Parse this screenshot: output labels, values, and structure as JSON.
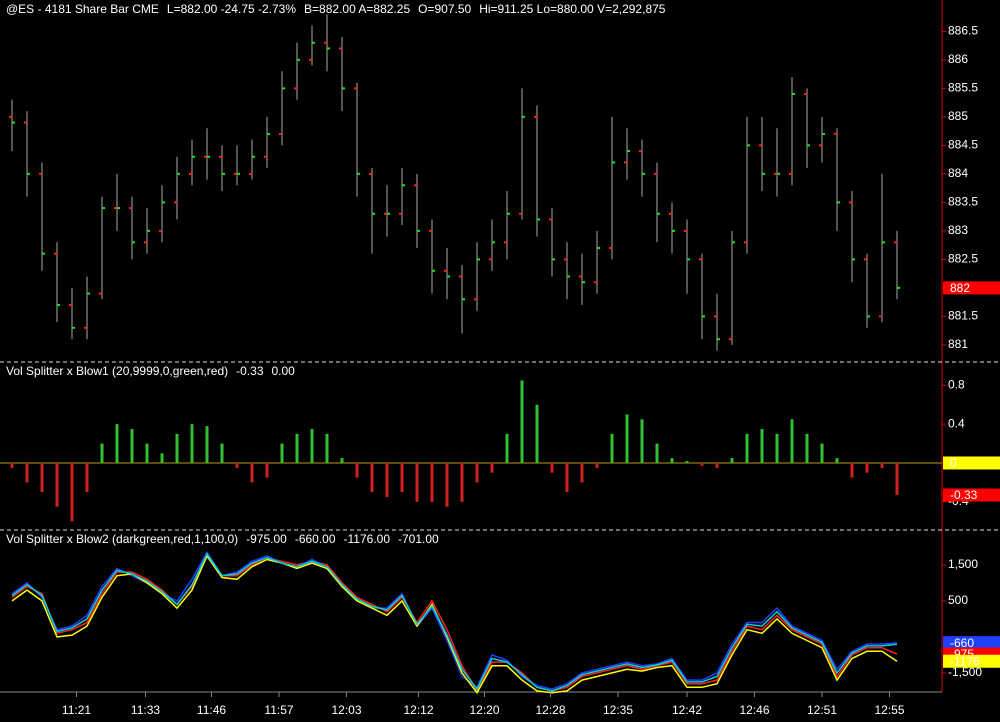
{
  "chart_data": [
    {
      "type": "ohlc",
      "header": [
        {
          "text": "@ES - 4181 Share Bar  CME",
          "color": "#ffffff"
        },
        {
          "text": "L=882.00  -24.75  -2.73%",
          "color": "#ff2020"
        },
        {
          "text": "B=882.00  A=882.25",
          "color": "#ffffff"
        },
        {
          "text": "O=907.50",
          "color": "#ff2020"
        },
        {
          "text": "Hi=911.25  Lo=880.00  V=2,292,875",
          "color": "#ffffff"
        }
      ],
      "open": [
        885,
        884.9,
        884,
        882.6,
        881.7,
        881.3,
        881.9,
        883.4,
        883.4,
        882.8,
        883,
        883.5,
        884,
        884.3,
        884.3,
        884,
        884,
        884.3,
        884.7,
        885.5,
        886,
        886.3,
        886.2,
        885.5,
        884,
        883.3,
        883.3,
        883.8,
        883,
        882.3,
        882.2,
        881.8,
        882.5,
        882.8,
        883.3,
        885,
        883.2,
        882.5,
        882.2,
        882.1,
        882.7,
        884.2,
        884.4,
        884,
        883.3,
        883,
        882.5,
        881.5,
        881.1,
        882.8,
        884.5,
        884,
        884,
        885.4,
        884.5,
        884.7,
        883.5,
        882.5,
        881.5,
        882.8
      ],
      "high": [
        885.3,
        885.1,
        884.2,
        882.8,
        882,
        882.2,
        883.6,
        884,
        883.6,
        883.4,
        883.8,
        884.3,
        884.6,
        884.8,
        884.5,
        884.5,
        884.6,
        885,
        885.8,
        886.3,
        886.6,
        886.8,
        886.4,
        885.6,
        884.1,
        883.8,
        884.1,
        884,
        883.2,
        882.7,
        882.4,
        882.8,
        883.2,
        883.7,
        885.5,
        885.2,
        883.4,
        882.8,
        882.6,
        883,
        885,
        884.8,
        884.6,
        884.2,
        883.5,
        883.2,
        882.6,
        881.9,
        883,
        885,
        885,
        884.8,
        885.7,
        885.5,
        885,
        884.8,
        883.7,
        882.6,
        884,
        883
      ],
      "low": [
        884.4,
        883.6,
        882.3,
        881.4,
        881.1,
        881.1,
        881.8,
        883,
        882.5,
        882.6,
        882.8,
        883.2,
        883.8,
        883.9,
        883.7,
        883.8,
        883.9,
        884.1,
        884.5,
        885.3,
        885.9,
        885.8,
        885.1,
        883.6,
        882.6,
        882.9,
        883.1,
        882.7,
        881.9,
        881.8,
        881.2,
        881.6,
        882.3,
        882.5,
        883.2,
        882.9,
        882.2,
        881.8,
        881.7,
        881.9,
        882.5,
        883.9,
        883.6,
        882.8,
        882.6,
        881.9,
        881.1,
        880.9,
        881,
        882.6,
        883.7,
        883.6,
        883.8,
        884.1,
        884.2,
        883,
        882.1,
        881.3,
        881.4,
        881.8
      ],
      "close": [
        884.9,
        884,
        882.6,
        881.7,
        881.3,
        881.9,
        883.4,
        883.4,
        882.8,
        883,
        883.5,
        884,
        884.3,
        884.3,
        884,
        884,
        884.3,
        884.7,
        885.5,
        886,
        886.3,
        886.2,
        885.5,
        884,
        883.3,
        883.3,
        883.8,
        883,
        882.3,
        882.2,
        881.8,
        882.5,
        882.8,
        883.3,
        885,
        883.2,
        882.5,
        882.2,
        882.1,
        882.7,
        884.2,
        884.4,
        884,
        883.3,
        883,
        882.5,
        881.5,
        881.1,
        882.8,
        884.5,
        884,
        884,
        885.4,
        884.5,
        884.7,
        883.5,
        882.5,
        881.5,
        882.8,
        882
      ],
      "colors": {
        "bar": "#a8a8a8",
        "open": "#ff2020",
        "close": "#20e020"
      },
      "ylim": [
        880.7,
        887.05
      ],
      "yticks": [
        881,
        881.5,
        882,
        882.5,
        883,
        883.5,
        884,
        884.5,
        885,
        885.5,
        886,
        886.5
      ],
      "markers": [
        {
          "value": 882,
          "color": "#ff0000",
          "text_color": "#ffffff"
        }
      ]
    },
    {
      "type": "bar",
      "header": [
        {
          "text": "Vol Splitter x Blow1 (20,9999,0,green,red)",
          "color": "#ffffff"
        },
        {
          "text": "-0.33",
          "color": "#ff2020"
        },
        {
          "text": "0.00",
          "color": "#ffff00"
        }
      ],
      "values": [
        -0.05,
        -0.2,
        -0.3,
        -0.45,
        -0.6,
        -0.3,
        0.2,
        0.4,
        0.35,
        0.2,
        0.1,
        0.3,
        0.4,
        0.38,
        0.2,
        -0.05,
        -0.2,
        -0.15,
        0.2,
        0.3,
        0.35,
        0.3,
        0.05,
        -0.15,
        -0.3,
        -0.35,
        -0.3,
        -0.4,
        -0.4,
        -0.45,
        -0.4,
        -0.2,
        -0.1,
        0.3,
        0.85,
        0.6,
        -0.1,
        -0.3,
        -0.2,
        -0.05,
        0.3,
        0.5,
        0.45,
        0.2,
        0.05,
        0.02,
        -0.03,
        -0.05,
        0.05,
        0.3,
        0.35,
        0.3,
        0.45,
        0.3,
        0.2,
        0.05,
        -0.15,
        -0.1,
        -0.05,
        -0.33
      ],
      "colors": {
        "positive": "#30c030",
        "negative": "#d02020",
        "zero_line": "#b0a000"
      },
      "ylim": [
        -0.69,
        1.04
      ],
      "yticks": [
        -0.4,
        0.4,
        0.8
      ],
      "markers": [
        {
          "value": 0,
          "color": "#ffff00",
          "text_color": "#000000"
        },
        {
          "value": -0.33,
          "color": "#ff0000",
          "text_color": "#000000"
        }
      ]
    },
    {
      "type": "line",
      "header": [
        {
          "text": "Vol Splitter x Blow2 (darkgreen,red,1,100,0)",
          "color": "#ffffff"
        },
        {
          "text": "-975.00",
          "color": "#ff2020"
        },
        {
          "text": "-660.00",
          "color": "#2040ff"
        },
        {
          "text": "-1176.00",
          "color": "#ffff00"
        },
        {
          "text": "-701.00",
          "color": "#00d0d0"
        }
      ],
      "series": [
        {
          "color": "#ff2020",
          "values": [
            600,
            900,
            700,
            -400,
            -300,
            -100,
            700,
            1300,
            1300,
            1100,
            800,
            400,
            900,
            1800,
            1200,
            1200,
            1500,
            1700,
            1600,
            1500,
            1600,
            1500,
            1000,
            600,
            400,
            200,
            600,
            -100,
            500,
            -300,
            -1300,
            -2000,
            -1200,
            -1200,
            -1500,
            -1900,
            -2000,
            -1900,
            -1600,
            -1500,
            -1400,
            -1300,
            -1400,
            -1300,
            -1200,
            -1800,
            -1800,
            -1700,
            -900,
            -200,
            -300,
            100,
            -300,
            -500,
            -700,
            -1600,
            -1000,
            -800,
            -800,
            -975
          ]
        },
        {
          "color": "#2040ff",
          "values": [
            700,
            1000,
            600,
            -300,
            -200,
            100,
            900,
            1400,
            1200,
            1000,
            700,
            500,
            1100,
            1850,
            1200,
            1300,
            1600,
            1750,
            1550,
            1450,
            1650,
            1450,
            900,
            500,
            300,
            300,
            700,
            -200,
            300,
            -600,
            -1600,
            -1900,
            -1000,
            -1150,
            -1600,
            -1850,
            -1950,
            -1800,
            -1500,
            -1400,
            -1300,
            -1200,
            -1300,
            -1250,
            -1100,
            -1700,
            -1700,
            -1500,
            -700,
            -100,
            -100,
            300,
            -200,
            -400,
            -600,
            -1400,
            -900,
            -700,
            -700,
            -660
          ]
        },
        {
          "color": "#ffff00",
          "values": [
            500,
            800,
            500,
            -500,
            -450,
            -200,
            600,
            1200,
            1250,
            1000,
            700,
            300,
            800,
            1750,
            1150,
            1100,
            1450,
            1650,
            1550,
            1400,
            1550,
            1400,
            900,
            500,
            300,
            100,
            500,
            -200,
            400,
            -500,
            -1500,
            -2050,
            -1300,
            -1300,
            -1700,
            -2000,
            -2050,
            -2000,
            -1700,
            -1600,
            -1500,
            -1400,
            -1450,
            -1350,
            -1300,
            -1900,
            -1900,
            -1800,
            -1000,
            -300,
            -400,
            0,
            -400,
            -600,
            -800,
            -1700,
            -1100,
            -900,
            -900,
            -1176
          ]
        },
        {
          "color": "#00d0d0",
          "values": [
            650,
            950,
            650,
            -350,
            -250,
            0,
            800,
            1350,
            1250,
            1050,
            750,
            400,
            950,
            1800,
            1200,
            1250,
            1550,
            1700,
            1550,
            1450,
            1600,
            1450,
            950,
            550,
            350,
            250,
            650,
            -150,
            350,
            -450,
            -1400,
            -1950,
            -1100,
            -1200,
            -1550,
            -1900,
            -2000,
            -1850,
            -1550,
            -1450,
            -1350,
            -1250,
            -1350,
            -1280,
            -1150,
            -1750,
            -1750,
            -1600,
            -800,
            -150,
            -200,
            200,
            -250,
            -450,
            -650,
            -1500,
            -950,
            -750,
            -750,
            -701
          ]
        }
      ],
      "ylim": [
        -2030,
        2470
      ],
      "yticks": [
        {
          "value": -1500,
          "label": "-1,500"
        },
        500,
        {
          "value": 1500,
          "label": "1,500"
        }
      ],
      "markers": [
        {
          "value": -660,
          "color": "#2040ff",
          "text_color": "#000000"
        },
        {
          "value": -975,
          "color": "#ff0000",
          "text_color": "#000000"
        },
        {
          "value": -1176,
          "color": "#ffff00",
          "text_color": "#000000"
        }
      ],
      "xlim": [
        -0.8,
        62
      ],
      "xticks": [
        {
          "value": 4.3,
          "label": "11:21"
        },
        {
          "value": 8.9,
          "label": "11:33"
        },
        {
          "value": 13.3,
          "label": "11:46"
        },
        {
          "value": 17.8,
          "label": "11:57"
        },
        {
          "value": 22.3,
          "label": "12:03"
        },
        {
          "value": 27.1,
          "label": "12:12"
        },
        {
          "value": 31.5,
          "label": "12:20"
        },
        {
          "value": 35.9,
          "label": "12:28"
        },
        {
          "value": 40.4,
          "label": "12:35"
        },
        {
          "value": 45,
          "label": "12:42"
        },
        {
          "value": 49.5,
          "label": "12:46"
        },
        {
          "value": 54,
          "label": "12:51"
        },
        {
          "value": 58.5,
          "label": "12:55"
        }
      ]
    }
  ]
}
